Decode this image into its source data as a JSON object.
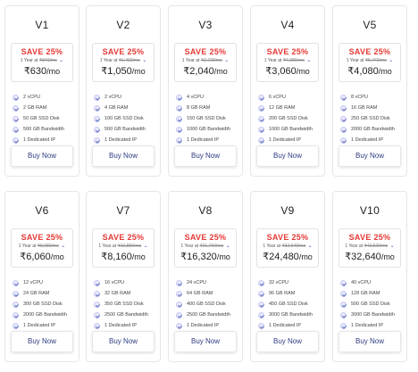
{
  "plans": [
    {
      "name": "V1",
      "save": "SAVE 25%",
      "term": "1 Year at",
      "old_price": "₹840/mo",
      "price": "₹630",
      "per": "/mo",
      "features": [
        "2 vCPU",
        "2 GB RAM",
        "50 GB SSD Disk",
        "500 GB Bandwidth",
        "1 Dedicated IP"
      ],
      "button": "Buy Now"
    },
    {
      "name": "V2",
      "save": "SAVE 25%",
      "term": "1 Year at",
      "old_price": "₹1,400/mo",
      "price": "₹1,050",
      "per": "/mo",
      "features": [
        "2 vCPU",
        "4 GB RAM",
        "100 GB SSD Disk",
        "500 GB Bandwidth",
        "1 Dedicated IP"
      ],
      "button": "Buy Now"
    },
    {
      "name": "V3",
      "save": "SAVE 25%",
      "term": "1 Year at",
      "old_price": "₹2,720/mo",
      "price": "₹2,040",
      "per": "/mo",
      "features": [
        "4 vCPU",
        "8 GB RAM",
        "150 GB SSD Disk",
        "1000 GB Bandwidth",
        "1 Dedicated IP"
      ],
      "button": "Buy Now"
    },
    {
      "name": "V4",
      "save": "SAVE 25%",
      "term": "1 Year at",
      "old_price": "₹4,080/mo",
      "price": "₹3,060",
      "per": "/mo",
      "features": [
        "6 vCPU",
        "12 GB RAM",
        "200 GB SSD Disk",
        "1000 GB Bandwidth",
        "1 Dedicated IP"
      ],
      "button": "Buy Now"
    },
    {
      "name": "V5",
      "save": "SAVE 25%",
      "term": "1 Year at",
      "old_price": "₹5,440/mo",
      "price": "₹4,080",
      "per": "/mo",
      "features": [
        "8 vCPU",
        "16 GB RAM",
        "250 GB SSD Disk",
        "2000 GB Bandwidth",
        "1 Dedicated IP"
      ],
      "button": "Buy Now"
    },
    {
      "name": "V6",
      "save": "SAVE 25%",
      "term": "1 Year at",
      "old_price": "₹8,080/mo",
      "price": "₹6,060",
      "per": "/mo",
      "features": [
        "12 vCPU",
        "24 GB RAM",
        "300 GB SSD Disk",
        "2000 GB Bandwidth",
        "1 Dedicated IP"
      ],
      "button": "Buy Now"
    },
    {
      "name": "V7",
      "save": "SAVE 25%",
      "term": "1 Year at",
      "old_price": "₹10,880/mo",
      "price": "₹8,160",
      "per": "/mo",
      "features": [
        "16 vCPU",
        "32 GB RAM",
        "350 GB SSD Disk",
        "2500 GB Bandwidth",
        "1 Dedicated IP"
      ],
      "button": "Buy Now"
    },
    {
      "name": "V8",
      "save": "SAVE 25%",
      "term": "1 Year at",
      "old_price": "₹21,760/mo",
      "price": "₹16,320",
      "per": "/mo",
      "features": [
        "24 vCPU",
        "64 GB RAM",
        "400 GB SSD Disk",
        "2500 GB Bandwidth",
        "1 Dedicated IP"
      ],
      "button": "Buy Now"
    },
    {
      "name": "V9",
      "save": "SAVE 25%",
      "term": "1 Year at",
      "old_price": "₹32,640/mo",
      "price": "₹24,480",
      "per": "/mo",
      "features": [
        "32 vCPU",
        "96 GB RAM",
        "450 GB SSD Disk",
        "3000 GB Bandwidth",
        "1 Dedicated IP"
      ],
      "button": "Buy Now"
    },
    {
      "name": "V10",
      "save": "SAVE 25%",
      "term": "1 Year at",
      "old_price": "₹43,520/mo",
      "price": "₹32,640",
      "per": "/mo",
      "features": [
        "40 vCPU",
        "128 GB RAM",
        "500 GB SSD Disk",
        "3000 GB Bandwidth",
        "1 Dedicated IP"
      ],
      "button": "Buy Now"
    }
  ],
  "colors": {
    "save": "#e53935",
    "check": "#5c6bc0",
    "button_text": "#2f3b80"
  }
}
